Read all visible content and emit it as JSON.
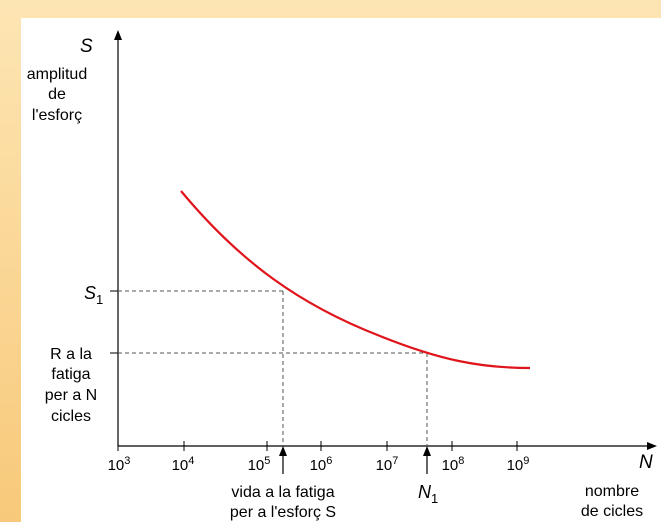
{
  "frame": {
    "background_color": "#fbd99a",
    "panel_color": "#ffffff"
  },
  "y_axis": {
    "symbol": "S",
    "label_lines": [
      "amplitud",
      "de",
      "l'esforç"
    ],
    "s1_label": "S",
    "s1_sub": "1",
    "r_label_lines": [
      "R a la",
      "fatiga",
      "per a N",
      "cicles"
    ]
  },
  "x_axis": {
    "symbol": "N",
    "label_lines": [
      "nombre",
      "de cicles"
    ],
    "ticks": [
      {
        "base": "10",
        "exp": "3"
      },
      {
        "base": "10",
        "exp": "4"
      },
      {
        "base": "10",
        "exp": "5"
      },
      {
        "base": "10",
        "exp": "6"
      },
      {
        "base": "10",
        "exp": "7"
      },
      {
        "base": "10",
        "exp": "8"
      },
      {
        "base": "10",
        "exp": "9"
      }
    ],
    "fatigue_life_lines": [
      "vida a la fatiga",
      "per a l'esforç S"
    ],
    "n1_label": "N",
    "n1_sub": "1"
  },
  "curve": {
    "color": "#e0151b",
    "guide_color": "#555555"
  }
}
